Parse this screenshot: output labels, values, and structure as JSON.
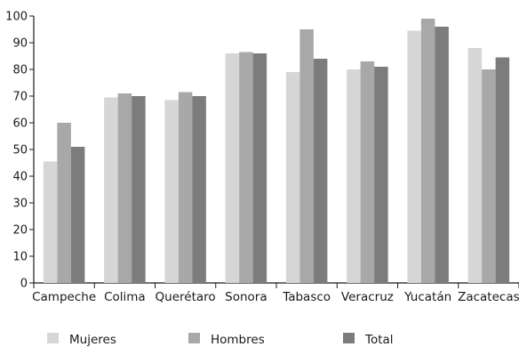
{
  "chart_data": {
    "type": "bar",
    "title": "",
    "xlabel": "",
    "ylabel": "",
    "ylim": [
      0,
      100
    ],
    "yticks": [
      0,
      10,
      20,
      30,
      40,
      50,
      60,
      70,
      80,
      90,
      100
    ],
    "grid": false,
    "legend_position": "bottom",
    "categories": [
      "Campeche",
      "Colima",
      "Querétaro",
      "Sonora",
      "Tabasco",
      "Veracruz",
      "Yucatán",
      "Zacatecas"
    ],
    "series": [
      {
        "name": "Mujeres",
        "color": "#d6d6d6",
        "values": [
          45.5,
          69.5,
          68.5,
          86,
          79,
          80,
          94.5,
          88
        ]
      },
      {
        "name": "Hombres",
        "color": "#a8a8a8",
        "values": [
          60,
          71,
          71.5,
          86.5,
          95,
          83,
          99,
          80
        ]
      },
      {
        "name": "Total",
        "color": "#7c7c7c",
        "values": [
          51,
          70,
          70,
          86,
          84,
          81,
          96,
          84.5
        ]
      }
    ]
  }
}
